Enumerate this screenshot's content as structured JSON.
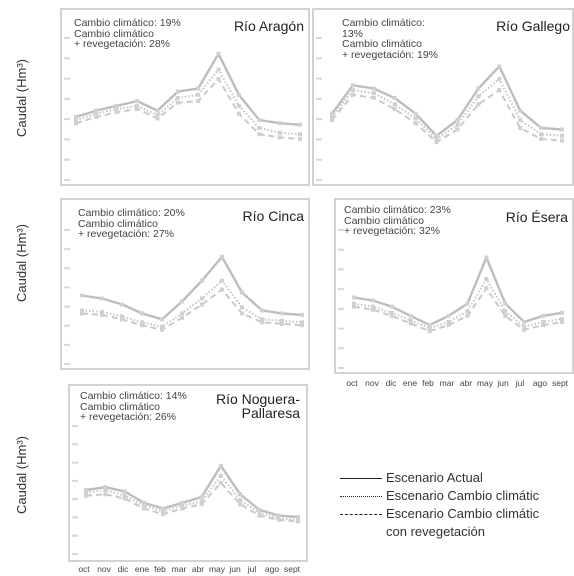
{
  "ylabel": "Caudal (Hm³)",
  "months": [
    "oct",
    "nov",
    "dic",
    "ene",
    "feb",
    "mar",
    "abr",
    "may",
    "jun",
    "jul",
    "ago",
    "sept"
  ],
  "legend": {
    "actual": "Escenario Actual",
    "cc": "Escenario Cambio climátic",
    "ccr_line1": "Escenario Cambio climátic",
    "ccr_line2": "con revegetación"
  },
  "panels": [
    {
      "title_lines": [
        "Río Aragón"
      ],
      "ann": [
        "Cambio climático: 19%",
        "Cambio climático",
        "+ revegetación: 28%"
      ]
    },
    {
      "title_lines": [
        "Río Gallego"
      ],
      "ann": [
        "Cambio climático:",
        "13%",
        "Cambio climático",
        "+ revegetación: 19%"
      ]
    },
    {
      "title_lines": [
        "Río Cinca"
      ],
      "ann": [
        "Cambio climático: 20%",
        "Cambio climático",
        "+ revegetación: 27%"
      ]
    },
    {
      "title_lines": [
        "Río Ésera"
      ],
      "ann": [
        "Cambio climático: 23%",
        "Cambio climático",
        "+ revegetación: 32%"
      ]
    },
    {
      "title_lines": [
        "Río Noguera-",
        "Pallaresa"
      ],
      "ann": [
        "Cambio climático: 14%",
        "Cambio climático",
        "+ revegetación: 26%"
      ]
    }
  ],
  "chart_data": [
    {
      "type": "line",
      "title": "Río Aragón",
      "x": [
        "oct",
        "nov",
        "dic",
        "ene",
        "feb",
        "mar",
        "abr",
        "may",
        "jun",
        "jul",
        "ago",
        "sept"
      ],
      "series": [
        {
          "name": "Escenario Actual",
          "values": [
            40,
            44,
            47,
            50,
            44,
            56,
            58,
            80,
            54,
            38,
            36,
            35
          ]
        },
        {
          "name": "Escenario Cambio climátic",
          "values": [
            38,
            42,
            45,
            47,
            41,
            52,
            54,
            70,
            47,
            33,
            30,
            29
          ]
        },
        {
          "name": "Escenario Cambio climátic con revegetación",
          "values": [
            36,
            40,
            43,
            45,
            39,
            49,
            50,
            64,
            42,
            29,
            27,
            26
          ]
        }
      ]
    },
    {
      "type": "line",
      "title": "Río Gallego",
      "x": [
        "oct",
        "nov",
        "dic",
        "ene",
        "feb",
        "mar",
        "abr",
        "may",
        "jun",
        "jul",
        "ago",
        "sept"
      ],
      "series": [
        {
          "name": "Escenario Actual",
          "values": [
            42,
            60,
            58,
            52,
            42,
            28,
            38,
            58,
            72,
            44,
            33,
            32
          ]
        },
        {
          "name": "Escenario Cambio climátic",
          "values": [
            40,
            57,
            55,
            48,
            39,
            26,
            35,
            53,
            64,
            38,
            29,
            28
          ]
        },
        {
          "name": "Escenario Cambio climátic con revegetación",
          "values": [
            38,
            54,
            52,
            45,
            36,
            24,
            32,
            48,
            57,
            33,
            26,
            25
          ]
        }
      ]
    },
    {
      "type": "line",
      "title": "Río Cinca",
      "x": [
        "oct",
        "nov",
        "dic",
        "ene",
        "feb",
        "mar",
        "abr",
        "may",
        "jun",
        "jul",
        "ago",
        "sept"
      ],
      "series": [
        {
          "name": "Escenario Actual",
          "values": [
            46,
            44,
            40,
            34,
            30,
            42,
            56,
            72,
            48,
            36,
            34,
            33
          ]
        },
        {
          "name": "Escenario Cambio climátic",
          "values": [
            36,
            35,
            32,
            28,
            25,
            34,
            44,
            56,
            38,
            30,
            29,
            28
          ]
        },
        {
          "name": "Escenario Cambio climátic con revegetación",
          "values": [
            34,
            33,
            30,
            26,
            23,
            31,
            40,
            50,
            34,
            28,
            27,
            26
          ]
        }
      ]
    },
    {
      "type": "line",
      "title": "Río Ésera",
      "x": [
        "oct",
        "nov",
        "dic",
        "ene",
        "feb",
        "mar",
        "abr",
        "may",
        "jun",
        "jul",
        "ago",
        "sept"
      ],
      "series": [
        {
          "name": "Escenario Actual",
          "values": [
            46,
            44,
            40,
            34,
            28,
            34,
            42,
            72,
            42,
            30,
            34,
            36
          ]
        },
        {
          "name": "Escenario Cambio climátic",
          "values": [
            42,
            40,
            36,
            31,
            26,
            30,
            37,
            58,
            37,
            27,
            30,
            32
          ]
        },
        {
          "name": "Escenario Cambio climátic con revegetación",
          "values": [
            40,
            38,
            34,
            29,
            24,
            28,
            34,
            52,
            34,
            25,
            28,
            30
          ]
        }
      ]
    },
    {
      "type": "line",
      "title": "Río Noguera-Pallaresa",
      "x": [
        "oct",
        "nov",
        "dic",
        "ene",
        "feb",
        "mar",
        "abr",
        "may",
        "jun",
        "jul",
        "ago",
        "sept"
      ],
      "series": [
        {
          "name": "Escenario Actual",
          "values": [
            45,
            47,
            44,
            36,
            32,
            36,
            40,
            62,
            42,
            31,
            27,
            26
          ]
        },
        {
          "name": "Escenario Cambio climátic",
          "values": [
            43,
            45,
            41,
            34,
            30,
            34,
            37,
            55,
            38,
            29,
            25,
            24
          ]
        },
        {
          "name": "Escenario Cambio climátic con revegetación",
          "values": [
            41,
            42,
            39,
            32,
            28,
            32,
            35,
            50,
            35,
            27,
            24,
            23
          ]
        }
      ]
    }
  ]
}
